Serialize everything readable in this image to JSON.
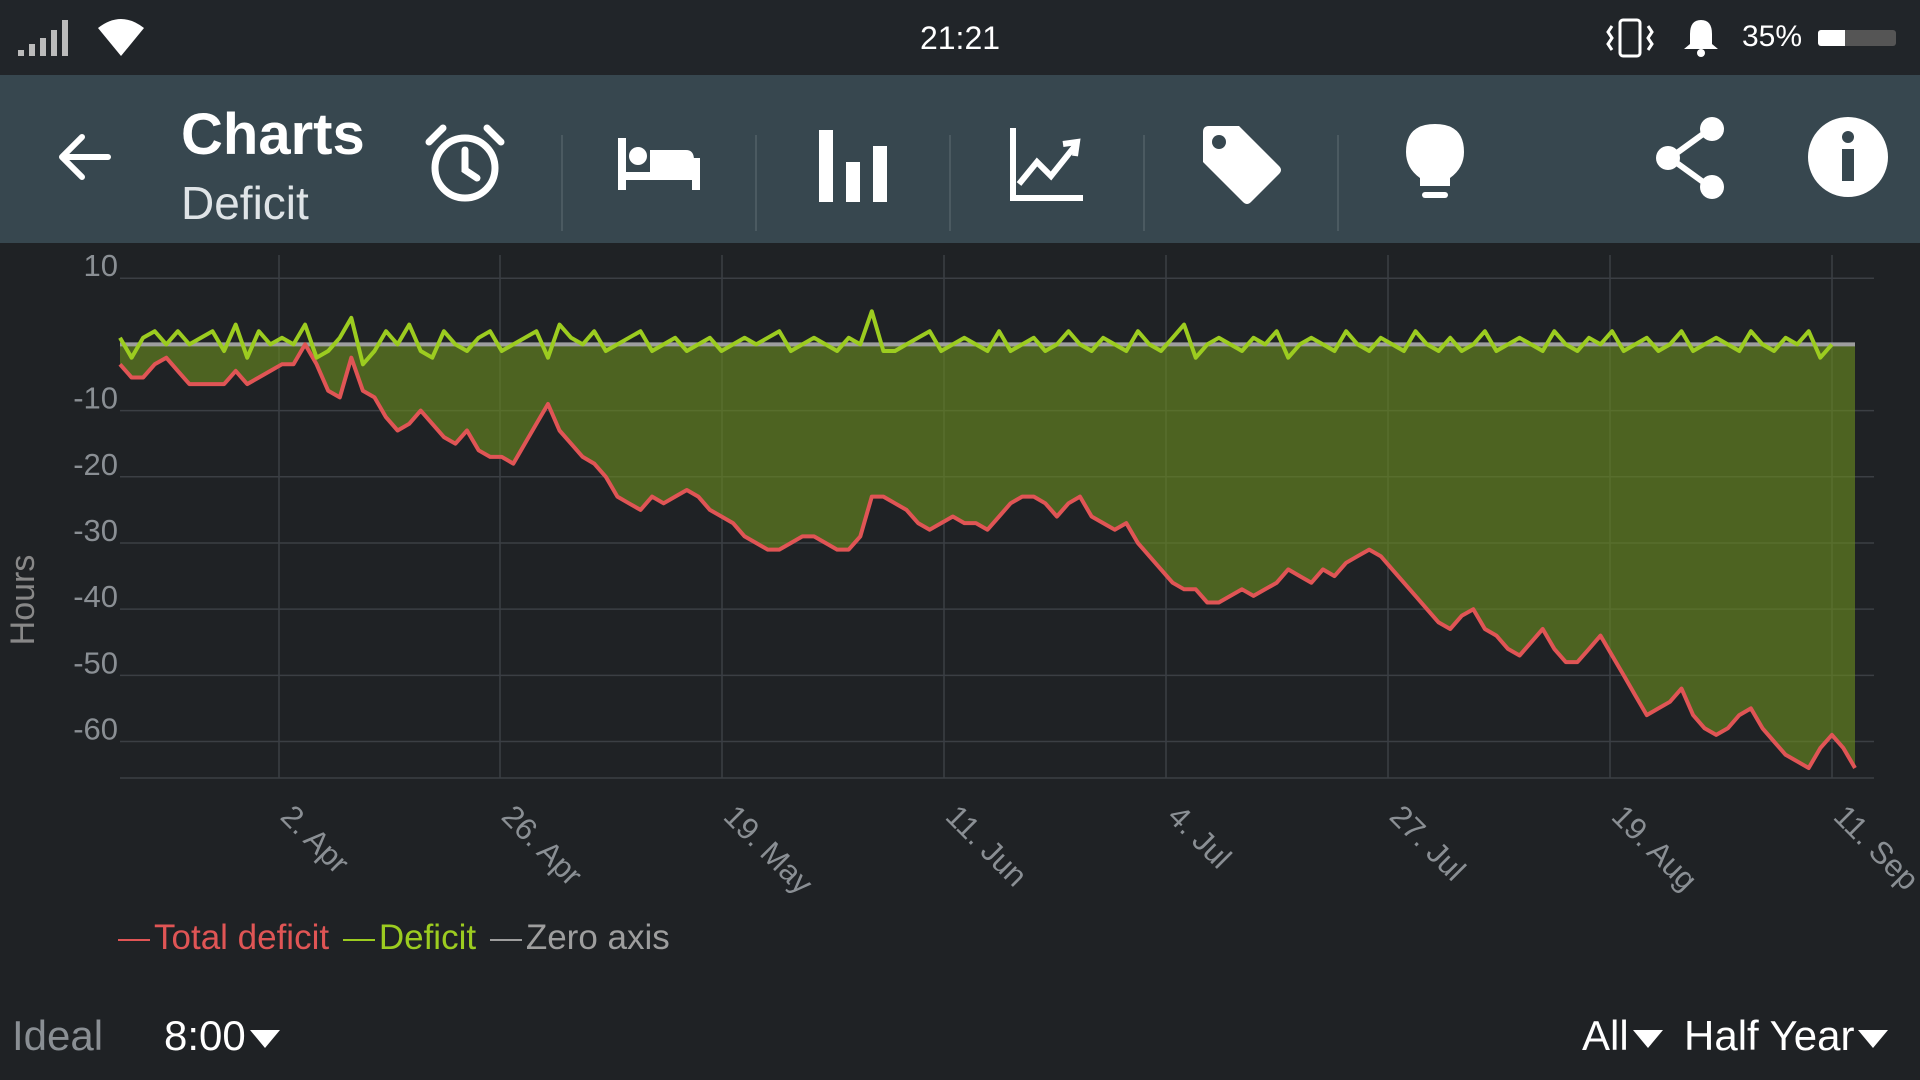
{
  "status_bar": {
    "time": "21:21",
    "battery_text": "35%",
    "battery_level": 0.35,
    "icons": [
      "signal-icon",
      "wifi-icon",
      "vibrate-icon",
      "alarm-bell-icon",
      "battery-icon"
    ]
  },
  "app_bar": {
    "title": "Charts",
    "subtitle": "Deficit",
    "tools": [
      {
        "name": "alarm-clock-icon"
      },
      {
        "name": "bed-icon"
      },
      {
        "name": "bar-chart-icon"
      },
      {
        "name": "trend-chart-icon"
      },
      {
        "name": "tag-icon"
      },
      {
        "name": "lightbulb-icon"
      }
    ],
    "actions": [
      "share-icon",
      "info-icon"
    ]
  },
  "chart_data": {
    "type": "line",
    "ylabel": "Hours",
    "yticks": [
      10,
      -10,
      -20,
      -30,
      -40,
      -50,
      -60
    ],
    "ylim": [
      -64,
      12
    ],
    "xticks": [
      "2. Apr",
      "26. Apr",
      "19. May",
      "11. Jun",
      "4. Jul",
      "27. Jul",
      "19. Aug",
      "11. Sep"
    ],
    "legend": [
      "Total deficit",
      "Deficit",
      "Zero axis"
    ],
    "legend_position": "bottom-left",
    "grid": true,
    "series": [
      {
        "name": "Total deficit",
        "color": "#e05555",
        "values": [
          -3,
          -5,
          -5,
          -3,
          -2,
          -4,
          -6,
          -6,
          -6,
          -6,
          -4,
          -6,
          -5,
          -4,
          -3,
          -3,
          0,
          -3,
          -7,
          -8,
          -2,
          -7,
          -8,
          -11,
          -13,
          -12,
          -10,
          -12,
          -14,
          -15,
          -13,
          -16,
          -17,
          -17,
          -18,
          -15,
          -12,
          -9,
          -13,
          -15,
          -17,
          -18,
          -20,
          -23,
          -24,
          -25,
          -23,
          -24,
          -23,
          -22,
          -23,
          -25,
          -26,
          -27,
          -29,
          -30,
          -31,
          -31,
          -30,
          -29,
          -29,
          -30,
          -31,
          -31,
          -29,
          -23,
          -23,
          -24,
          -25,
          -27,
          -28,
          -27,
          -26,
          -27,
          -27,
          -28,
          -26,
          -24,
          -23,
          -23,
          -24,
          -26,
          -24,
          -23,
          -26,
          -27,
          -28,
          -27,
          -30,
          -32,
          -34,
          -36,
          -37,
          -37,
          -39,
          -39,
          -38,
          -37,
          -38,
          -37,
          -36,
          -34,
          -35,
          -36,
          -34,
          -35,
          -33,
          -32,
          -31,
          -32,
          -34,
          -36,
          -38,
          -40,
          -42,
          -43,
          -41,
          -40,
          -43,
          -44,
          -46,
          -47,
          -45,
          -43,
          -46,
          -48,
          -48,
          -46,
          -44,
          -47,
          -50,
          -53,
          -56,
          -55,
          -54,
          -52,
          -56,
          -58,
          -59,
          -58,
          -56,
          -55,
          -58,
          -60,
          -62,
          -63,
          -64,
          -61,
          -59,
          -61,
          -64
        ]
      },
      {
        "name": "Deficit",
        "color": "#9ccc20",
        "values": [
          1,
          -2,
          1,
          2,
          0,
          2,
          0,
          1,
          2,
          -1,
          3,
          -2,
          2,
          0,
          1,
          0,
          3,
          -2,
          -1,
          1,
          4,
          -3,
          -1,
          2,
          0,
          3,
          -1,
          -2,
          2,
          0,
          -1,
          1,
          2,
          -1,
          0,
          1,
          2,
          -2,
          3,
          1,
          0,
          2,
          -1,
          0,
          1,
          2,
          -1,
          0,
          1,
          -1,
          0,
          1,
          -1,
          0,
          1,
          0,
          1,
          2,
          -1,
          0,
          1,
          0,
          -1,
          1,
          0,
          5,
          -1,
          -1,
          0,
          1,
          2,
          -1,
          0,
          1,
          0,
          -1,
          2,
          -1,
          0,
          1,
          -1,
          0,
          2,
          0,
          -1,
          1,
          0,
          -1,
          2,
          0,
          -1,
          1,
          3,
          -2,
          0,
          1,
          0,
          -1,
          1,
          0,
          2,
          -2,
          0,
          1,
          0,
          -1,
          2,
          0,
          -1,
          1,
          0,
          -1,
          2,
          0,
          -1,
          1,
          -1,
          0,
          2,
          -1,
          0,
          1,
          0,
          -1,
          2,
          0,
          -1,
          1,
          0,
          2,
          -1,
          0,
          1,
          -1,
          0,
          2,
          -1,
          0,
          1,
          0,
          -1,
          2,
          0,
          -1,
          1,
          0,
          2,
          -2,
          0
        ]
      },
      {
        "name": "Zero axis",
        "color": "#9e9e9e",
        "values": [
          0
        ]
      }
    ]
  },
  "bottom_bar": {
    "ideal_label": "Ideal",
    "ideal_value": "8:00",
    "filter_value": "All",
    "range_value": "Half Year"
  }
}
